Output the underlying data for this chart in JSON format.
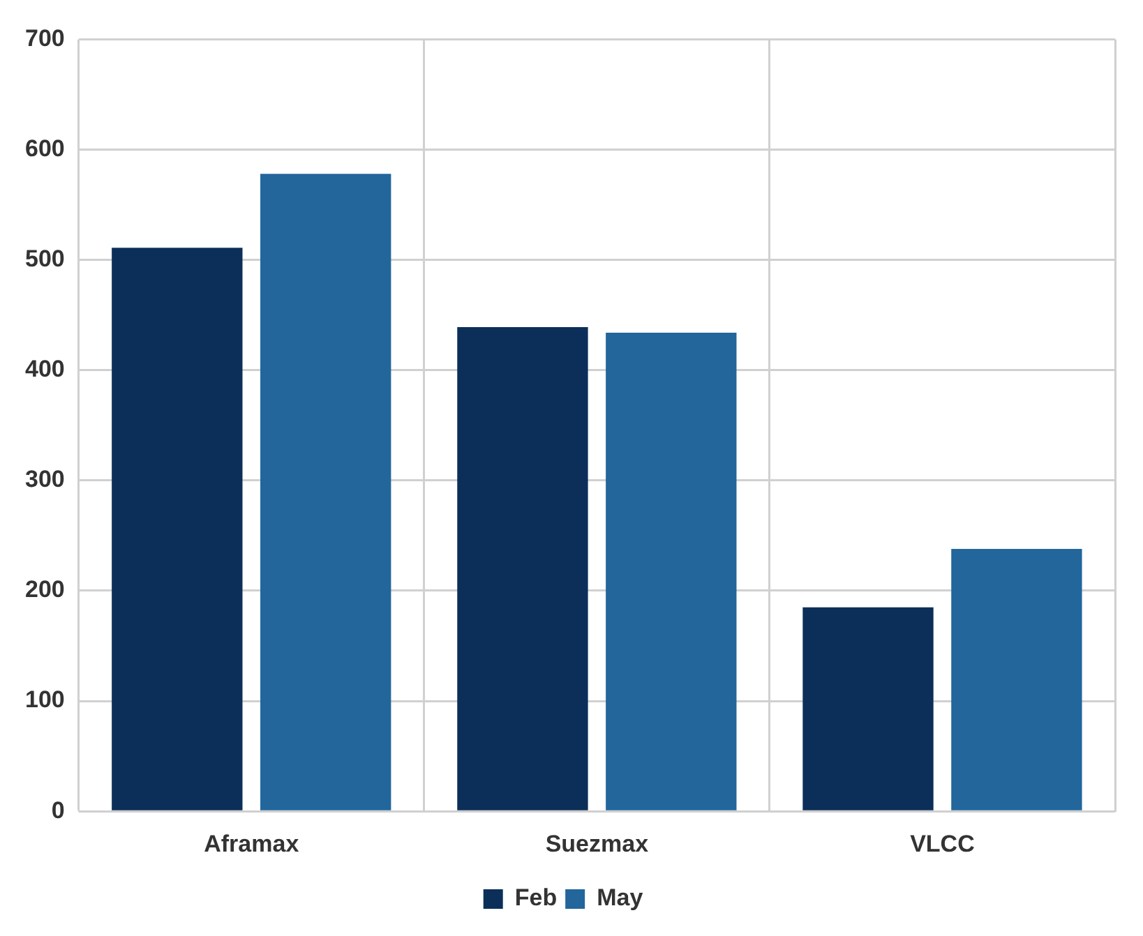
{
  "chart_data": {
    "type": "bar",
    "categories": [
      "Aframax",
      "Suezmax",
      "VLCC"
    ],
    "series": [
      {
        "name": "Feb",
        "color": "#0c2f59",
        "values": [
          511,
          439,
          185
        ]
      },
      {
        "name": "May",
        "color": "#22669c",
        "values": [
          578,
          434,
          238
        ]
      }
    ],
    "ylim": [
      0,
      700
    ],
    "yticks": [
      0,
      100,
      200,
      300,
      400,
      500,
      600,
      700
    ],
    "grid": true,
    "legend": "bottom"
  }
}
